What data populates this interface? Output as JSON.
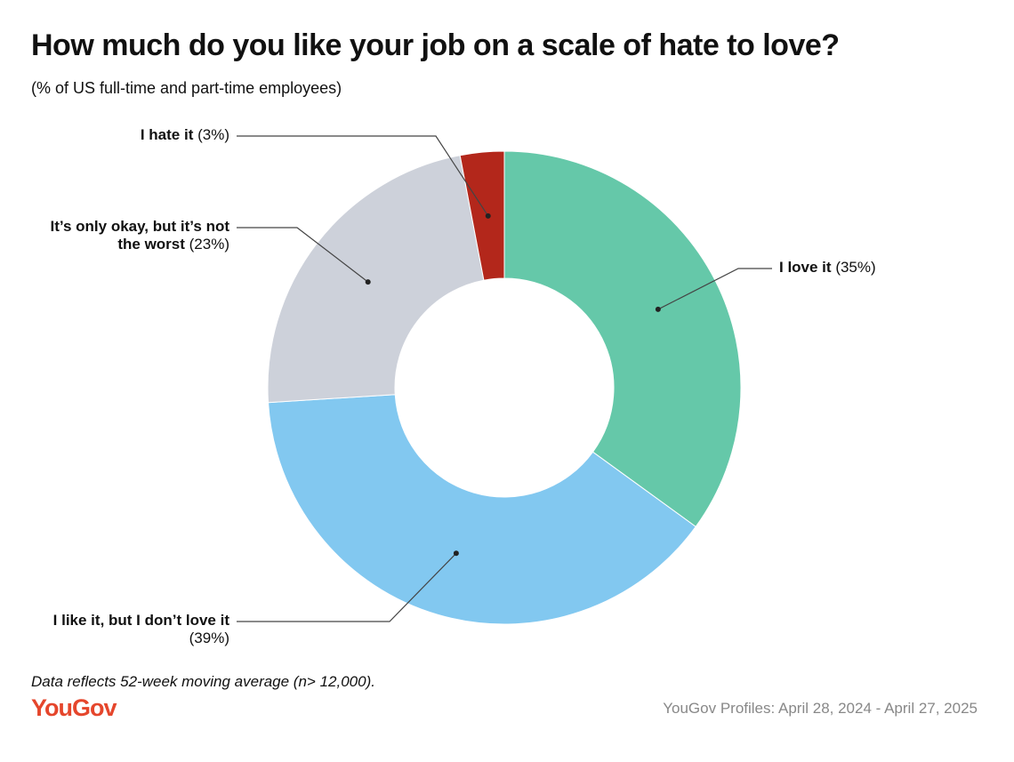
{
  "chart_data": {
    "type": "pie",
    "donut": true,
    "title": "How much do you like your job on a scale of hate to love?",
    "subtitle": "(% of US full-time and part-time employees)",
    "categories": [
      "I love it",
      "I like it, but I don’t love it",
      "It’s only okay, but it’s not the worst",
      "I hate it"
    ],
    "values": [
      35,
      39,
      23,
      3
    ],
    "value_labels": [
      "(35%)",
      "(39%)",
      "(23%)",
      "(3%)"
    ],
    "colors": [
      "#65c8a9",
      "#82c8f0",
      "#cdd1da",
      "#b3271b"
    ],
    "note": "Data reflects 52-week moving average (n> 12,000).",
    "brand": "YouGov",
    "source": "YouGov Profiles: April 28, 2024 - April 27, 2025"
  }
}
